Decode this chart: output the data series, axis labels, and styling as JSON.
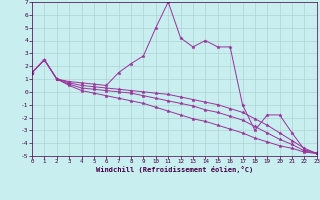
{
  "xlabel": "Windchill (Refroidissement éolien,°C)",
  "background_color": "#c8eef0",
  "line_color": "#993399",
  "grid_color": "#aacccc",
  "xlim": [
    0,
    23
  ],
  "ylim": [
    -5,
    7
  ],
  "xticks": [
    0,
    1,
    2,
    3,
    4,
    5,
    6,
    7,
    8,
    9,
    10,
    11,
    12,
    13,
    14,
    15,
    16,
    17,
    18,
    19,
    20,
    21,
    22,
    23
  ],
  "yticks": [
    -5,
    -4,
    -3,
    -2,
    -1,
    0,
    1,
    2,
    3,
    4,
    5,
    6,
    7
  ],
  "series": [
    {
      "x": [
        0,
        1,
        2,
        3,
        4,
        5,
        6,
        7,
        8,
        9,
        10,
        11,
        12,
        13,
        14,
        15,
        16,
        17,
        18,
        19,
        20,
        21,
        22,
        23
      ],
      "y": [
        1.5,
        2.5,
        1.0,
        0.8,
        0.7,
        0.6,
        0.5,
        1.5,
        2.2,
        2.8,
        5.0,
        7.0,
        4.2,
        3.5,
        4.0,
        3.5,
        3.5,
        -1.0,
        -3.0,
        -1.8,
        -1.8,
        -3.2,
        -4.5,
        -4.8
      ]
    },
    {
      "x": [
        0,
        1,
        2,
        3,
        4,
        5,
        6,
        7,
        8,
        9,
        10,
        11,
        12,
        13,
        14,
        15,
        16,
        17,
        18,
        19,
        20,
        21,
        22,
        23
      ],
      "y": [
        1.5,
        2.5,
        1.0,
        0.7,
        0.5,
        0.4,
        0.3,
        0.2,
        0.1,
        0.0,
        -0.1,
        -0.2,
        -0.4,
        -0.6,
        -0.8,
        -1.0,
        -1.3,
        -1.6,
        -2.1,
        -2.6,
        -3.2,
        -3.8,
        -4.4,
        -4.8
      ]
    },
    {
      "x": [
        0,
        1,
        2,
        3,
        4,
        5,
        6,
        7,
        8,
        9,
        10,
        11,
        12,
        13,
        14,
        15,
        16,
        17,
        18,
        19,
        20,
        21,
        22,
        23
      ],
      "y": [
        1.5,
        2.5,
        1.0,
        0.6,
        0.3,
        0.2,
        0.1,
        0.0,
        -0.1,
        -0.3,
        -0.5,
        -0.7,
        -0.9,
        -1.1,
        -1.4,
        -1.6,
        -1.9,
        -2.2,
        -2.7,
        -3.2,
        -3.7,
        -4.1,
        -4.6,
        -4.8
      ]
    },
    {
      "x": [
        0,
        1,
        2,
        3,
        4,
        5,
        6,
        7,
        8,
        9,
        10,
        11,
        12,
        13,
        14,
        15,
        16,
        17,
        18,
        19,
        20,
        21,
        22,
        23
      ],
      "y": [
        1.5,
        2.5,
        1.0,
        0.5,
        0.1,
        -0.1,
        -0.3,
        -0.5,
        -0.7,
        -0.9,
        -1.2,
        -1.5,
        -1.8,
        -2.1,
        -2.3,
        -2.6,
        -2.9,
        -3.2,
        -3.6,
        -3.9,
        -4.2,
        -4.4,
        -4.7,
        -4.8
      ]
    }
  ]
}
